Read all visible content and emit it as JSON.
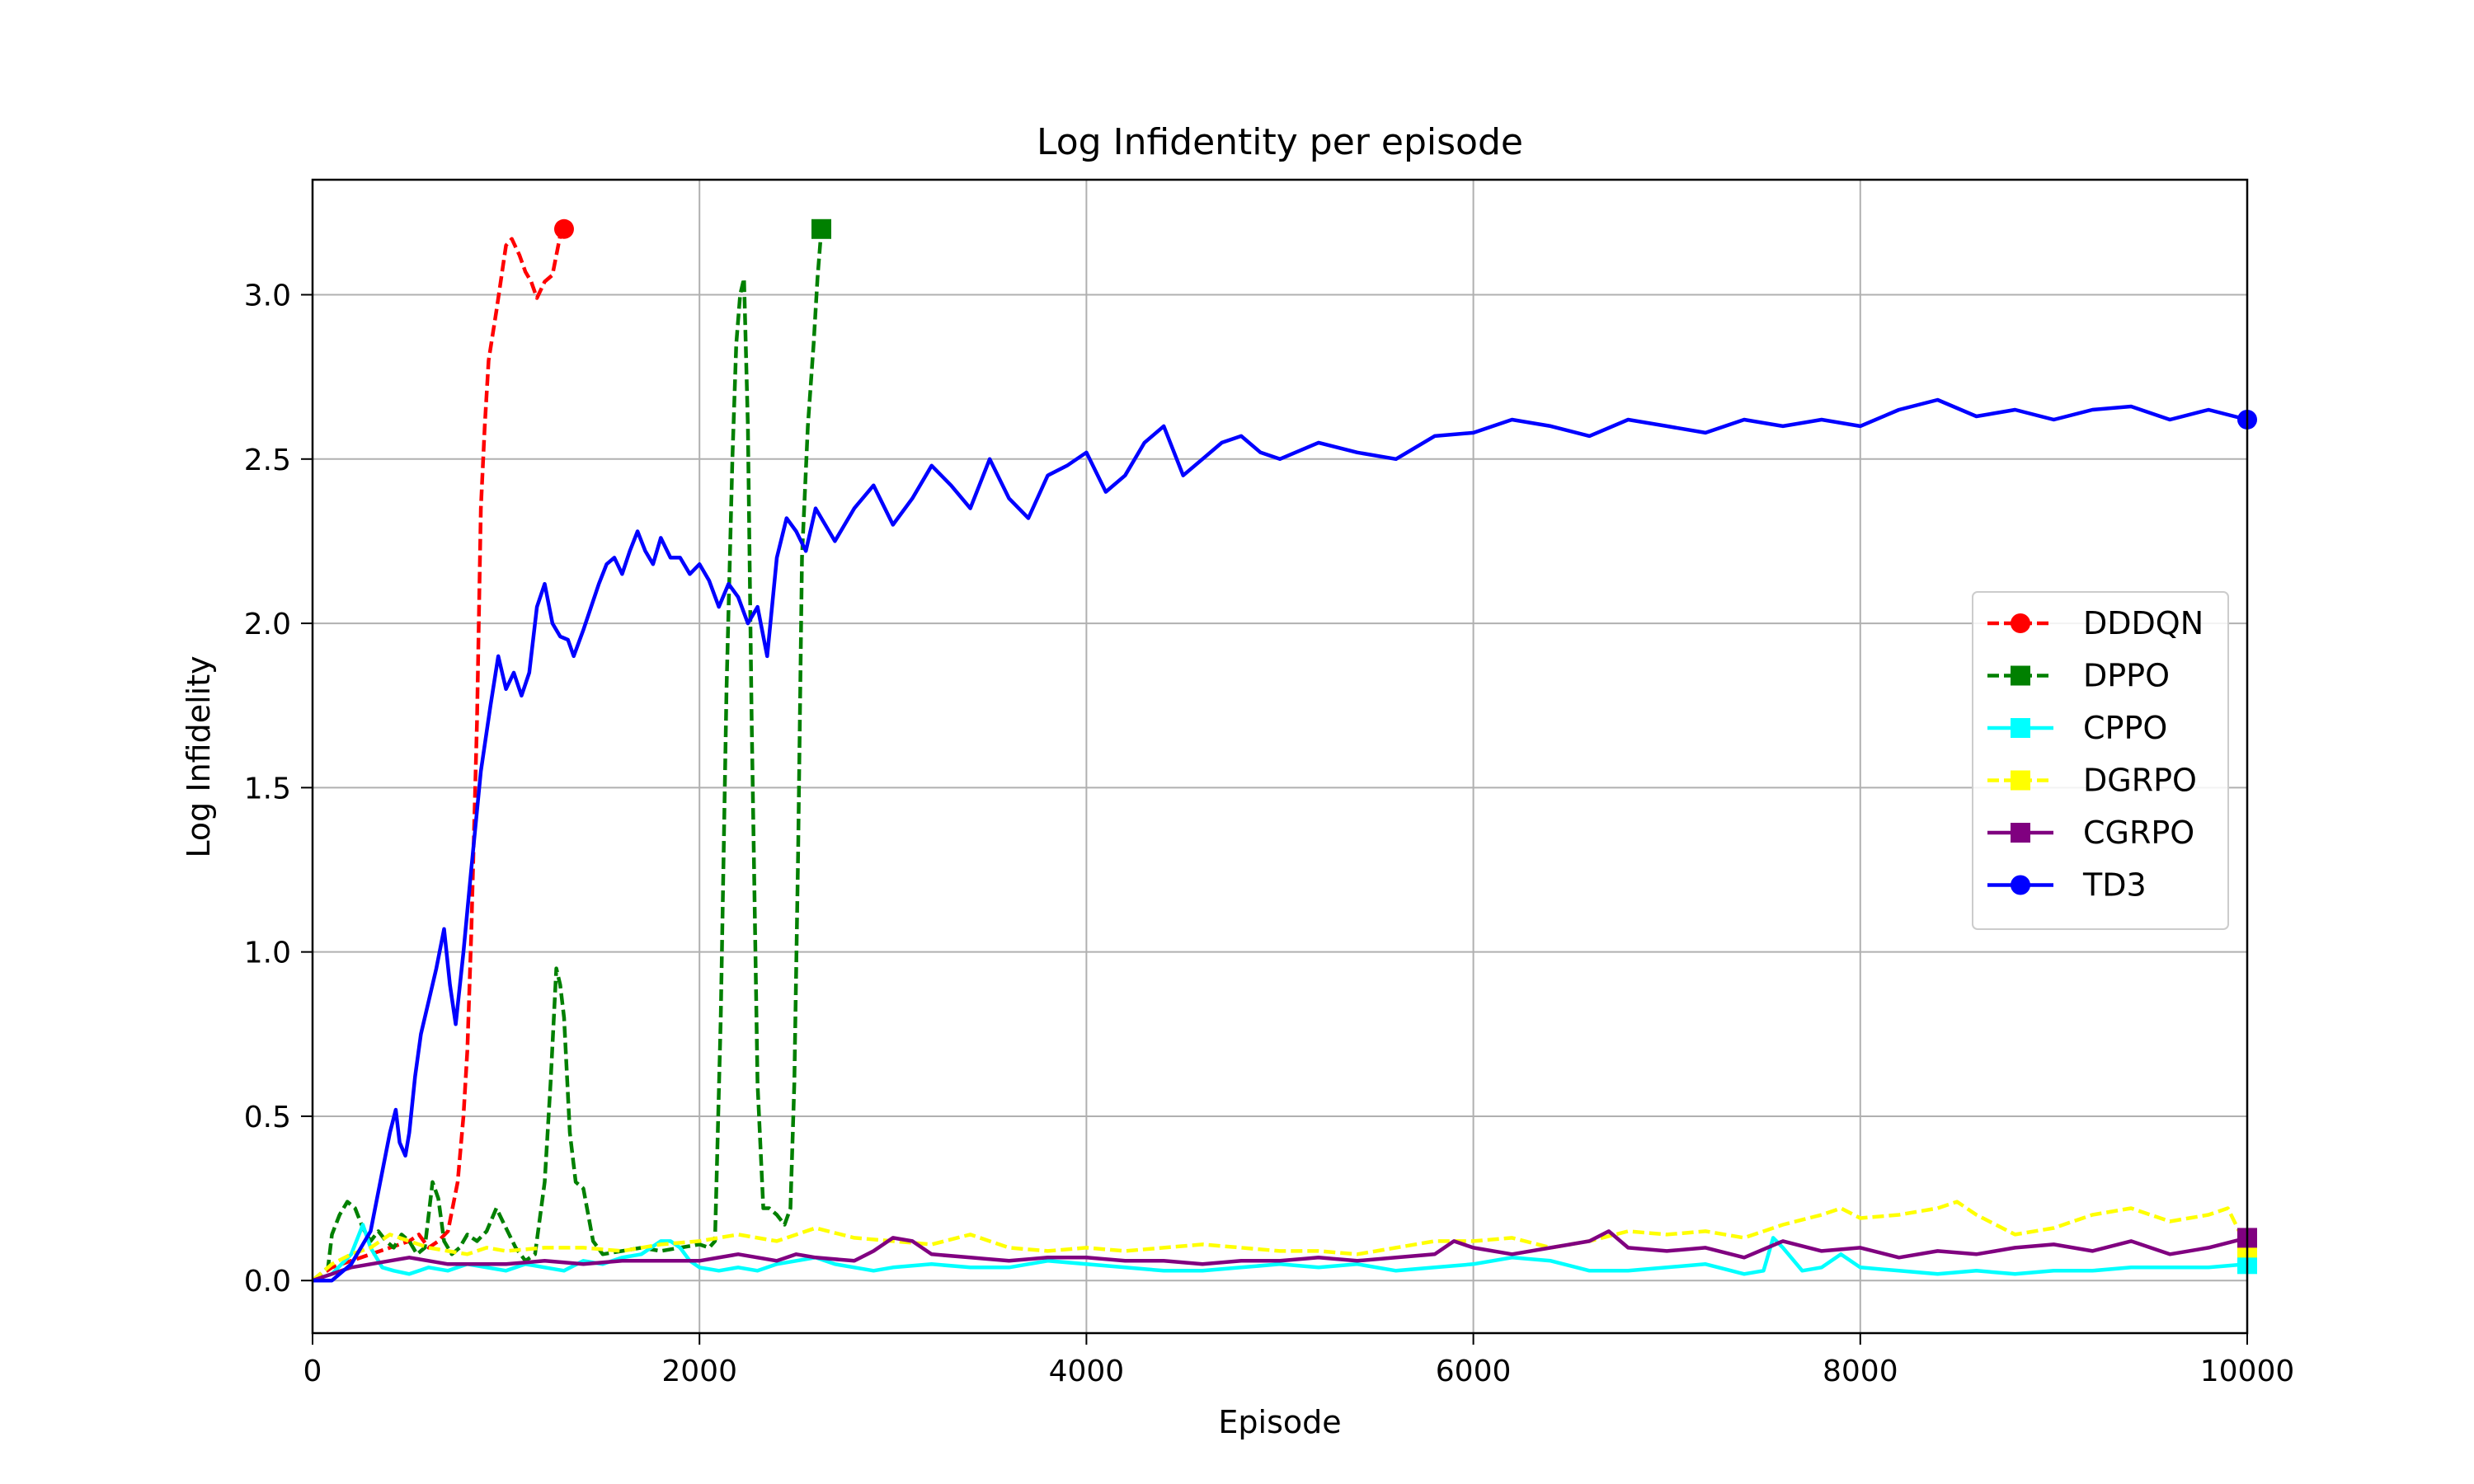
{
  "chart_data": {
    "type": "line",
    "title": "Log Infidentity per episode",
    "xlabel": "Episode",
    "ylabel": "Log Infidelity",
    "xlim": [
      0,
      10000
    ],
    "ylim": [
      -0.16,
      3.35
    ],
    "xticks": [
      0,
      2000,
      4000,
      6000,
      8000,
      10000
    ],
    "yticks": [
      0.0,
      0.5,
      1.0,
      1.5,
      2.0,
      2.5,
      3.0
    ],
    "xtick_labels": [
      "0",
      "2000",
      "4000",
      "6000",
      "8000",
      "10000"
    ],
    "ytick_labels": [
      "0.0",
      "0.5",
      "1.0",
      "1.5",
      "2.0",
      "2.5",
      "3.0"
    ],
    "grid": true,
    "legend_position": "center-right",
    "series": [
      {
        "name": "DDDQN",
        "color": "#ff0000",
        "dash": true,
        "marker": "circle",
        "x": [
          0,
          100,
          200,
          300,
          400,
          500,
          550,
          600,
          650,
          700,
          750,
          780,
          800,
          820,
          850,
          870,
          890,
          910,
          950,
          1000,
          1030,
          1070,
          1100,
          1130,
          1160,
          1200,
          1240,
          1280,
          1300
        ],
        "y": [
          0.0,
          0.04,
          0.06,
          0.08,
          0.1,
          0.12,
          0.14,
          0.1,
          0.12,
          0.15,
          0.3,
          0.5,
          0.7,
          1.05,
          1.7,
          2.35,
          2.6,
          2.8,
          2.95,
          3.15,
          3.17,
          3.12,
          3.07,
          3.04,
          2.99,
          3.04,
          3.06,
          3.18,
          3.2
        ]
      },
      {
        "name": "DPPO",
        "color": "#008000",
        "dash": true,
        "marker": "square",
        "x": [
          0,
          80,
          100,
          140,
          180,
          220,
          260,
          300,
          340,
          380,
          420,
          460,
          500,
          540,
          580,
          620,
          650,
          680,
          720,
          760,
          800,
          850,
          900,
          950,
          1000,
          1050,
          1100,
          1150,
          1200,
          1230,
          1260,
          1280,
          1300,
          1330,
          1360,
          1400,
          1450,
          1500,
          1600,
          1700,
          1800,
          1900,
          2000,
          2050,
          2080,
          2110,
          2140,
          2170,
          2190,
          2210,
          2230,
          2250,
          2270,
          2300,
          2330,
          2360,
          2400,
          2440,
          2470,
          2490,
          2510,
          2530,
          2560,
          2590,
          2610,
          2630
        ],
        "y": [
          0.0,
          0.04,
          0.14,
          0.2,
          0.24,
          0.22,
          0.16,
          0.12,
          0.15,
          0.12,
          0.1,
          0.14,
          0.12,
          0.08,
          0.1,
          0.3,
          0.25,
          0.12,
          0.08,
          0.1,
          0.14,
          0.12,
          0.15,
          0.22,
          0.16,
          0.1,
          0.06,
          0.08,
          0.3,
          0.6,
          0.95,
          0.9,
          0.8,
          0.45,
          0.3,
          0.28,
          0.12,
          0.08,
          0.09,
          0.1,
          0.09,
          0.1,
          0.11,
          0.1,
          0.12,
          0.8,
          1.8,
          2.5,
          2.85,
          3.0,
          3.05,
          2.6,
          1.7,
          0.6,
          0.22,
          0.22,
          0.2,
          0.17,
          0.22,
          0.6,
          1.3,
          2.2,
          2.6,
          2.85,
          3.05,
          3.2
        ]
      },
      {
        "name": "CPPO",
        "color": "#00ffff",
        "dash": false,
        "marker": "square",
        "x": [
          0,
          100,
          200,
          260,
          300,
          360,
          420,
          500,
          600,
          700,
          800,
          900,
          1000,
          1100,
          1200,
          1300,
          1400,
          1500,
          1600,
          1700,
          1800,
          1850,
          1900,
          1950,
          2000,
          2100,
          2200,
          2300,
          2400,
          2500,
          2600,
          2700,
          2800,
          2900,
          3000,
          3200,
          3400,
          3600,
          3800,
          4000,
          4200,
          4400,
          4600,
          4800,
          5000,
          5200,
          5400,
          5600,
          5800,
          6000,
          6200,
          6400,
          6600,
          6800,
          7000,
          7200,
          7400,
          7500,
          7550,
          7600,
          7700,
          7800,
          7900,
          8000,
          8200,
          8400,
          8600,
          8800,
          9000,
          9200,
          9400,
          9600,
          9800,
          10000
        ],
        "y": [
          0.0,
          0.02,
          0.08,
          0.17,
          0.1,
          0.04,
          0.03,
          0.02,
          0.04,
          0.03,
          0.05,
          0.04,
          0.03,
          0.05,
          0.04,
          0.03,
          0.06,
          0.05,
          0.07,
          0.08,
          0.12,
          0.12,
          0.1,
          0.06,
          0.04,
          0.03,
          0.04,
          0.03,
          0.05,
          0.06,
          0.07,
          0.05,
          0.04,
          0.03,
          0.04,
          0.05,
          0.04,
          0.04,
          0.06,
          0.05,
          0.04,
          0.03,
          0.03,
          0.04,
          0.05,
          0.04,
          0.05,
          0.03,
          0.04,
          0.05,
          0.07,
          0.06,
          0.03,
          0.03,
          0.04,
          0.05,
          0.02,
          0.03,
          0.13,
          0.1,
          0.03,
          0.04,
          0.08,
          0.04,
          0.03,
          0.02,
          0.03,
          0.02,
          0.03,
          0.03,
          0.04,
          0.04,
          0.04,
          0.05
        ]
      },
      {
        "name": "DGRPO",
        "color": "#ffff00",
        "dash": true,
        "marker": "square",
        "x": [
          0,
          100,
          200,
          300,
          400,
          500,
          600,
          700,
          800,
          900,
          1000,
          1200,
          1400,
          1600,
          1800,
          2000,
          2200,
          2400,
          2600,
          2800,
          3000,
          3200,
          3400,
          3600,
          3800,
          4000,
          4200,
          4400,
          4600,
          4800,
          5000,
          5200,
          5400,
          5600,
          5800,
          6000,
          6200,
          6400,
          6600,
          6800,
          7000,
          7200,
          7400,
          7600,
          7800,
          7900,
          8000,
          8200,
          8400,
          8500,
          8600,
          8800,
          9000,
          9200,
          9400,
          9600,
          9800,
          9900,
          10000
        ],
        "y": [
          0.0,
          0.05,
          0.08,
          0.1,
          0.14,
          0.12,
          0.1,
          0.09,
          0.08,
          0.1,
          0.09,
          0.1,
          0.1,
          0.09,
          0.11,
          0.12,
          0.14,
          0.12,
          0.16,
          0.13,
          0.12,
          0.11,
          0.14,
          0.1,
          0.09,
          0.1,
          0.09,
          0.1,
          0.11,
          0.1,
          0.09,
          0.09,
          0.08,
          0.1,
          0.12,
          0.12,
          0.13,
          0.1,
          0.12,
          0.15,
          0.14,
          0.15,
          0.13,
          0.17,
          0.2,
          0.22,
          0.19,
          0.2,
          0.22,
          0.24,
          0.2,
          0.14,
          0.16,
          0.2,
          0.22,
          0.18,
          0.2,
          0.22,
          0.1
        ]
      },
      {
        "name": "CGRPO",
        "color": "#800080",
        "dash": false,
        "marker": "square",
        "x": [
          0,
          100,
          200,
          300,
          400,
          500,
          600,
          700,
          800,
          1000,
          1200,
          1400,
          1600,
          1800,
          2000,
          2200,
          2400,
          2500,
          2600,
          2800,
          2900,
          3000,
          3100,
          3200,
          3400,
          3600,
          3800,
          4000,
          4200,
          4400,
          4600,
          4800,
          5000,
          5200,
          5400,
          5600,
          5800,
          5900,
          6000,
          6200,
          6400,
          6600,
          6700,
          6800,
          7000,
          7200,
          7400,
          7600,
          7800,
          8000,
          8200,
          8400,
          8600,
          8800,
          9000,
          9200,
          9400,
          9600,
          9800,
          10000
        ],
        "y": [
          0.0,
          0.02,
          0.04,
          0.05,
          0.06,
          0.07,
          0.06,
          0.05,
          0.05,
          0.05,
          0.06,
          0.05,
          0.06,
          0.06,
          0.06,
          0.08,
          0.06,
          0.08,
          0.07,
          0.06,
          0.09,
          0.13,
          0.12,
          0.08,
          0.07,
          0.06,
          0.07,
          0.07,
          0.06,
          0.06,
          0.05,
          0.06,
          0.06,
          0.07,
          0.06,
          0.07,
          0.08,
          0.12,
          0.1,
          0.08,
          0.1,
          0.12,
          0.15,
          0.1,
          0.09,
          0.1,
          0.07,
          0.12,
          0.09,
          0.1,
          0.07,
          0.09,
          0.08,
          0.1,
          0.11,
          0.09,
          0.12,
          0.08,
          0.1,
          0.13
        ]
      },
      {
        "name": "TD3",
        "color": "#0000ff",
        "dash": false,
        "marker": "circle",
        "x": [
          0,
          100,
          200,
          300,
          350,
          400,
          430,
          450,
          480,
          500,
          530,
          560,
          600,
          640,
          680,
          710,
          740,
          780,
          820,
          870,
          920,
          960,
          1000,
          1040,
          1080,
          1120,
          1160,
          1200,
          1240,
          1280,
          1320,
          1350,
          1400,
          1440,
          1480,
          1520,
          1560,
          1600,
          1640,
          1680,
          1720,
          1760,
          1800,
          1850,
          1900,
          1950,
          2000,
          2050,
          2100,
          2150,
          2200,
          2250,
          2300,
          2350,
          2400,
          2450,
          2500,
          2550,
          2600,
          2650,
          2700,
          2800,
          2900,
          3000,
          3100,
          3200,
          3300,
          3400,
          3500,
          3600,
          3700,
          3800,
          3900,
          4000,
          4100,
          4200,
          4300,
          4400,
          4500,
          4600,
          4700,
          4800,
          4900,
          5000,
          5200,
          5400,
          5600,
          5800,
          6000,
          6200,
          6400,
          6600,
          6800,
          7000,
          7200,
          7400,
          7600,
          7800,
          8000,
          8200,
          8400,
          8600,
          8800,
          9000,
          9200,
          9400,
          9600,
          9800,
          10000
        ],
        "y": [
          0.0,
          0.0,
          0.05,
          0.15,
          0.3,
          0.45,
          0.52,
          0.42,
          0.38,
          0.45,
          0.62,
          0.75,
          0.85,
          0.95,
          1.07,
          0.9,
          0.78,
          1.0,
          1.25,
          1.55,
          1.75,
          1.9,
          1.8,
          1.85,
          1.78,
          1.85,
          2.05,
          2.12,
          2.0,
          1.96,
          1.95,
          1.9,
          1.98,
          2.05,
          2.12,
          2.18,
          2.2,
          2.15,
          2.22,
          2.28,
          2.22,
          2.18,
          2.26,
          2.2,
          2.2,
          2.15,
          2.18,
          2.13,
          2.05,
          2.12,
          2.08,
          2.0,
          2.05,
          1.9,
          2.2,
          2.32,
          2.28,
          2.22,
          2.35,
          2.3,
          2.25,
          2.35,
          2.42,
          2.3,
          2.38,
          2.48,
          2.42,
          2.35,
          2.5,
          2.38,
          2.32,
          2.45,
          2.48,
          2.52,
          2.4,
          2.45,
          2.55,
          2.6,
          2.45,
          2.5,
          2.55,
          2.57,
          2.52,
          2.5,
          2.55,
          2.52,
          2.5,
          2.57,
          2.58,
          2.62,
          2.6,
          2.57,
          2.62,
          2.6,
          2.58,
          2.62,
          2.6,
          2.62,
          2.6,
          2.65,
          2.68,
          2.63,
          2.65,
          2.62,
          2.65,
          2.66,
          2.62,
          2.65,
          2.62
        ]
      }
    ]
  }
}
